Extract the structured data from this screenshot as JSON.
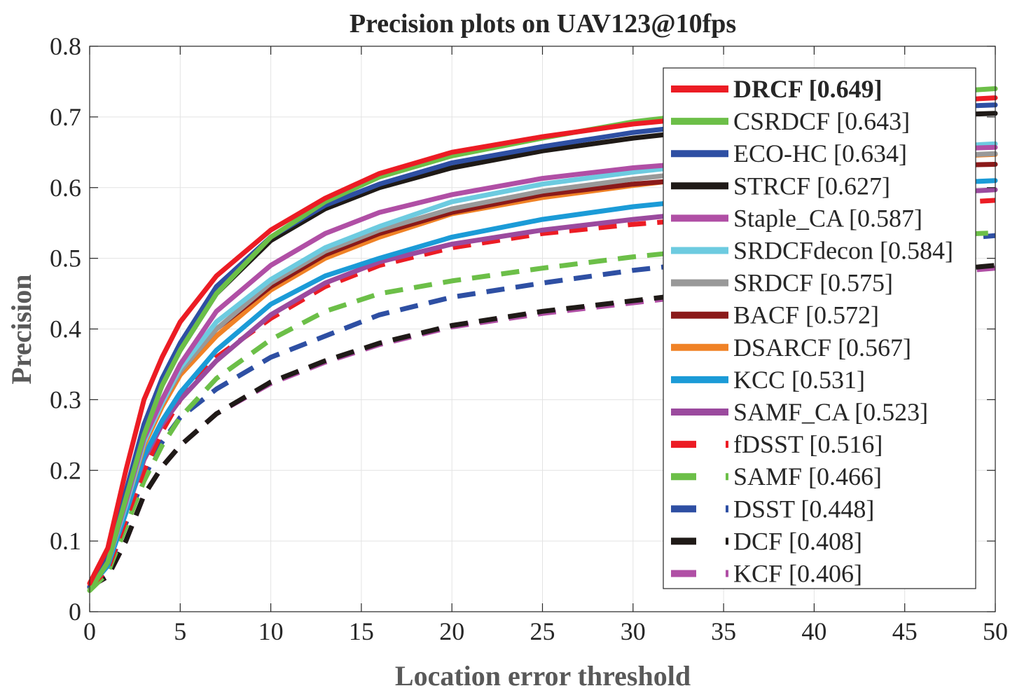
{
  "chart_data": {
    "type": "line",
    "title": "Precision plots on UAV123@10fps",
    "xlabel": "Location error threshold",
    "ylabel": "Precision",
    "xlim": [
      0,
      50
    ],
    "ylim": [
      0,
      0.8
    ],
    "xticks": [
      "0",
      "5",
      "10",
      "15",
      "20",
      "25",
      "30",
      "35",
      "40",
      "45",
      "50"
    ],
    "yticks": [
      "0",
      "0.1",
      "0.2",
      "0.3",
      "0.4",
      "0.5",
      "0.6",
      "0.7",
      "0.8"
    ],
    "grid": true,
    "legend_position": "top-right",
    "x": [
      0,
      1,
      2,
      3,
      4,
      5,
      7,
      10,
      13,
      16,
      20,
      25,
      30,
      35,
      40,
      45,
      50
    ],
    "series": [
      {
        "name": "DRCF [0.649]",
        "bold": true,
        "color": "#ec1c24",
        "dashed": false,
        "values": [
          0.04,
          0.09,
          0.2,
          0.3,
          0.36,
          0.41,
          0.475,
          0.54,
          0.585,
          0.62,
          0.65,
          0.672,
          0.69,
          0.702,
          0.712,
          0.72,
          0.727
        ]
      },
      {
        "name": "CSRDCF [0.643]",
        "bold": false,
        "color": "#6cbf48",
        "dashed": false,
        "values": [
          0.03,
          0.07,
          0.16,
          0.25,
          0.32,
          0.37,
          0.45,
          0.53,
          0.58,
          0.615,
          0.645,
          0.67,
          0.693,
          0.708,
          0.72,
          0.732,
          0.74
        ]
      },
      {
        "name": "ECO-HC [0.634]",
        "bold": false,
        "color": "#2e4fa3",
        "dashed": false,
        "values": [
          0.035,
          0.075,
          0.17,
          0.265,
          0.33,
          0.38,
          0.46,
          0.53,
          0.575,
          0.605,
          0.635,
          0.658,
          0.678,
          0.692,
          0.703,
          0.712,
          0.717
        ]
      },
      {
        "name": "STRCF [0.627]",
        "bold": false,
        "color": "#1f1a17",
        "dashed": false,
        "values": [
          0.035,
          0.07,
          0.165,
          0.26,
          0.32,
          0.37,
          0.45,
          0.525,
          0.57,
          0.6,
          0.628,
          0.652,
          0.67,
          0.684,
          0.694,
          0.701,
          0.705
        ]
      },
      {
        "name": "Staple_CA [0.587]",
        "bold": false,
        "color": "#b04fa5",
        "dashed": false,
        "values": [
          0.035,
          0.07,
          0.155,
          0.245,
          0.3,
          0.35,
          0.425,
          0.49,
          0.535,
          0.565,
          0.59,
          0.613,
          0.628,
          0.638,
          0.647,
          0.653,
          0.657
        ]
      },
      {
        "name": "SRDCFdecon [0.584]",
        "bold": false,
        "color": "#6dcbe0",
        "dashed": false,
        "values": [
          0.035,
          0.07,
          0.15,
          0.24,
          0.295,
          0.345,
          0.41,
          0.47,
          0.515,
          0.545,
          0.58,
          0.605,
          0.622,
          0.636,
          0.647,
          0.655,
          0.662
        ]
      },
      {
        "name": "SRDCF [0.575]",
        "bold": false,
        "color": "#999999",
        "dashed": false,
        "values": [
          0.035,
          0.07,
          0.155,
          0.24,
          0.295,
          0.34,
          0.4,
          0.465,
          0.51,
          0.54,
          0.57,
          0.595,
          0.612,
          0.626,
          0.636,
          0.643,
          0.648
        ]
      },
      {
        "name": "BACF [0.572]",
        "bold": false,
        "color": "#8b1a1a",
        "dashed": false,
        "values": [
          0.035,
          0.07,
          0.155,
          0.24,
          0.295,
          0.34,
          0.4,
          0.46,
          0.505,
          0.535,
          0.565,
          0.59,
          0.605,
          0.615,
          0.624,
          0.63,
          0.633
        ]
      },
      {
        "name": "DSARCF [0.567]",
        "bold": false,
        "color": "#f08226",
        "dashed": false,
        "values": [
          0.035,
          0.07,
          0.15,
          0.235,
          0.29,
          0.335,
          0.39,
          0.455,
          0.5,
          0.53,
          0.563,
          0.586,
          0.603,
          0.618,
          0.632,
          0.642,
          0.647
        ]
      },
      {
        "name": "KCC [0.531]",
        "bold": false,
        "color": "#1b9bd7",
        "dashed": false,
        "values": [
          0.035,
          0.065,
          0.14,
          0.22,
          0.27,
          0.31,
          0.37,
          0.435,
          0.475,
          0.5,
          0.53,
          0.555,
          0.573,
          0.586,
          0.596,
          0.604,
          0.61
        ]
      },
      {
        "name": "SAMF_CA [0.523]",
        "bold": false,
        "color": "#9b4a9e",
        "dashed": false,
        "values": [
          0.035,
          0.065,
          0.14,
          0.215,
          0.265,
          0.3,
          0.355,
          0.42,
          0.465,
          0.495,
          0.52,
          0.54,
          0.555,
          0.568,
          0.58,
          0.59,
          0.597
        ]
      },
      {
        "name": "fDSST [0.516]",
        "bold": false,
        "color": "#ec1c24",
        "dashed": true,
        "values": [
          0.035,
          0.06,
          0.13,
          0.2,
          0.255,
          0.3,
          0.36,
          0.415,
          0.46,
          0.49,
          0.515,
          0.535,
          0.548,
          0.558,
          0.567,
          0.575,
          0.582
        ]
      },
      {
        "name": "SAMF [0.466]",
        "bold": false,
        "color": "#6cbf48",
        "dashed": true,
        "values": [
          0.03,
          0.055,
          0.12,
          0.185,
          0.235,
          0.275,
          0.33,
          0.385,
          0.425,
          0.45,
          0.468,
          0.486,
          0.502,
          0.515,
          0.524,
          0.531,
          0.536
        ]
      },
      {
        "name": "DSST [0.448]",
        "bold": false,
        "color": "#2e4fa3",
        "dashed": true,
        "values": [
          0.035,
          0.06,
          0.125,
          0.19,
          0.24,
          0.275,
          0.315,
          0.36,
          0.39,
          0.42,
          0.445,
          0.465,
          0.483,
          0.497,
          0.51,
          0.522,
          0.532
        ]
      },
      {
        "name": "DCF [0.408]",
        "bold": false,
        "color": "#1f1a17",
        "dashed": true,
        "values": [
          0.035,
          0.05,
          0.1,
          0.165,
          0.205,
          0.235,
          0.28,
          0.325,
          0.355,
          0.38,
          0.405,
          0.425,
          0.44,
          0.455,
          0.467,
          0.478,
          0.49
        ]
      },
      {
        "name": "KCF [0.406]",
        "bold": false,
        "color": "#b04fa5",
        "dashed": true,
        "values": [
          0.035,
          0.05,
          0.1,
          0.165,
          0.205,
          0.235,
          0.28,
          0.323,
          0.353,
          0.378,
          0.403,
          0.422,
          0.437,
          0.452,
          0.464,
          0.475,
          0.486
        ]
      }
    ]
  }
}
